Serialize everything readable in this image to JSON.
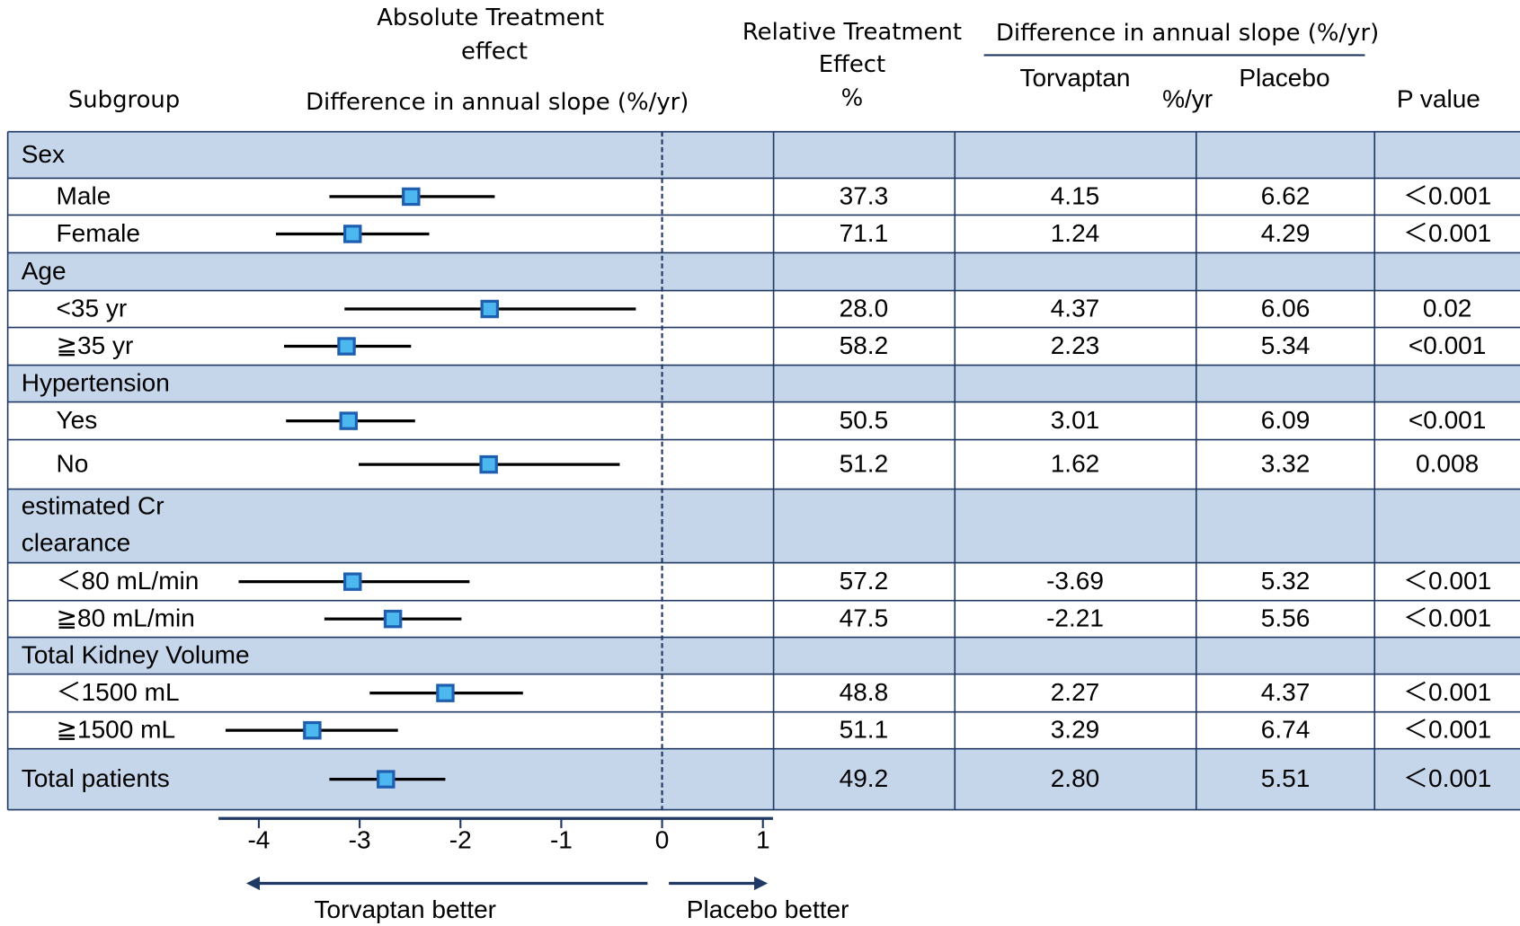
{
  "chart_data": {
    "type": "forest",
    "headers": {
      "subgroup": "Subgroup",
      "absolute_effect": [
        "Absolute Treatment",
        "effect"
      ],
      "absolute_axis": "Difference in annual slope (%/yr)",
      "relative_effect": [
        "Relative Treatment",
        "Effect",
        "%"
      ],
      "slope_header": "Difference in annual slope (%/yr)",
      "torvaptan": "Torvaptan",
      "unit": "%/yr",
      "placebo": "Placebo",
      "p_value": "P value"
    },
    "xlabel_left": "Torvaptan better",
    "xlabel_right": "Placebo better",
    "xlim": [
      -4.4,
      1.1
    ],
    "xticks": [
      -4,
      -3,
      -2,
      -1,
      0,
      1
    ],
    "marker_color": "#4db8f0",
    "marker_edge": "#1f5fb0",
    "shade_color": "#c5d5ea",
    "rows": [
      {
        "label": "Sex",
        "shaded": true
      },
      {
        "label": "Male",
        "estimate": -2.49,
        "ci_low": -3.3,
        "ci_high": -1.66,
        "relative": "37.3",
        "torvaptan": "4.15",
        "placebo": "6.62",
        "p": "＜0.001"
      },
      {
        "label": "Female",
        "estimate": -3.07,
        "ci_low": -3.83,
        "ci_high": -2.31,
        "relative": "71.1",
        "torvaptan": "1.24",
        "placebo": "4.29",
        "p": "＜0.001"
      },
      {
        "label": "Age",
        "shaded": true
      },
      {
        "label": "<35 yr",
        "estimate": -1.71,
        "ci_low": -3.15,
        "ci_high": -0.26,
        "relative": "28.0",
        "torvaptan": "4.37",
        "placebo": "6.06",
        "p": "0.02"
      },
      {
        "label": "≧35 yr",
        "estimate": -3.13,
        "ci_low": -3.75,
        "ci_high": -2.49,
        "relative": "58.2",
        "torvaptan": "2.23",
        "placebo": "5.34",
        "p": "<0.001"
      },
      {
        "label": "Hypertension",
        "shaded": true
      },
      {
        "label": "Yes",
        "estimate": -3.11,
        "ci_low": -3.73,
        "ci_high": -2.45,
        "relative": "50.5",
        "torvaptan": "3.01",
        "placebo": "6.09",
        "p": "<0.001"
      },
      {
        "label": "No",
        "estimate": -1.72,
        "ci_low": -3.01,
        "ci_high": -0.42,
        "relative": "51.2",
        "torvaptan": "1.62",
        "placebo": "3.32",
        "p": "0.008"
      },
      {
        "label": [
          "estimated Cr",
          "clearance"
        ],
        "shaded": true
      },
      {
        "label": "＜80 mL/min",
        "estimate": -3.07,
        "ci_low": -4.2,
        "ci_high": -1.91,
        "relative": "57.2",
        "torvaptan": "-3.69",
        "placebo": "5.32",
        "p": "＜0.001"
      },
      {
        "label": "≧80 mL/min",
        "estimate": -2.67,
        "ci_low": -3.35,
        "ci_high": -1.99,
        "relative": "47.5",
        "torvaptan": "-2.21",
        "placebo": "5.56",
        "p": "＜0.001"
      },
      {
        "label": "Total Kidney Volume",
        "shaded": true
      },
      {
        "label": "＜1500 mL",
        "estimate": -2.15,
        "ci_low": -2.9,
        "ci_high": -1.38,
        "relative": "48.8",
        "torvaptan": "2.27",
        "placebo": "4.37",
        "p": "＜0.001"
      },
      {
        "label": "≧1500 mL",
        "estimate": -3.47,
        "ci_low": -4.33,
        "ci_high": -2.62,
        "relative": "51.1",
        "torvaptan": "3.29",
        "placebo": "6.74",
        "p": "＜0.001"
      },
      {
        "label": "Total patients",
        "shaded": true,
        "estimate": -2.74,
        "ci_low": -3.3,
        "ci_high": -2.15,
        "relative": "49.2",
        "torvaptan": "2.80",
        "placebo": "5.51",
        "p": "＜0.001"
      }
    ]
  }
}
